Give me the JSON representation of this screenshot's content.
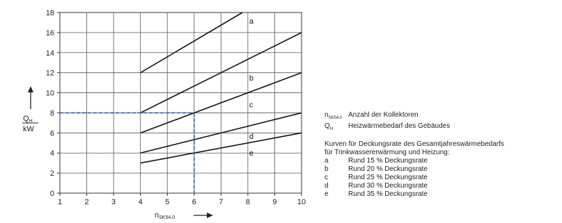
{
  "chart_data": {
    "type": "line",
    "x_ticks": [
      "1",
      "2",
      "3",
      "4",
      "5",
      "6",
      "7",
      "8",
      "9",
      "10"
    ],
    "y_ticks": [
      "0",
      "2",
      "4",
      "6",
      "8",
      "10",
      "12",
      "14",
      "16",
      "18"
    ],
    "xlim": [
      1,
      10
    ],
    "ylim": [
      0,
      18
    ],
    "grid": true,
    "xlabel": {
      "main": "n",
      "sub": "SK54.0"
    },
    "ylabel": {
      "num": "Q",
      "num_sub": "H",
      "den": "kW"
    },
    "series": [
      {
        "name": "a",
        "label_at": [
          8.05,
          16.9
        ],
        "points": [
          [
            4,
            12
          ],
          [
            7.8,
            18
          ]
        ]
      },
      {
        "name": "b",
        "label_at": [
          8.05,
          11.2
        ],
        "points": [
          [
            4,
            8
          ],
          [
            10,
            16
          ]
        ]
      },
      {
        "name": "c",
        "label_at": [
          8.05,
          8.55
        ],
        "points": [
          [
            4,
            6
          ],
          [
            10,
            12
          ]
        ]
      },
      {
        "name": "d",
        "label_at": [
          8.05,
          5.4
        ],
        "points": [
          [
            4,
            4
          ],
          [
            10,
            8
          ]
        ]
      },
      {
        "name": "e",
        "label_at": [
          8.05,
          3.75
        ],
        "points": [
          [
            4,
            3
          ],
          [
            10,
            6
          ]
        ]
      }
    ],
    "reading": {
      "x": 6,
      "y": 8,
      "color": "#3557a8"
    }
  },
  "legend": {
    "symbols": [
      {
        "sym": "n",
        "sub": "SK54.0",
        "text": "Anzahl der Kollektoren"
      },
      {
        "sym": "Q",
        "sub": "H",
        "text": "Heizwärmebedarf des Gebäudes"
      }
    ],
    "title_line1": "Kurven für Deckungsrate des Gesamtjahreswärmebedarfs",
    "title_line2": "für Trinkwassererwärmung und Heizung:",
    "curves": [
      {
        "key": "a",
        "text": "Rund 15 % Deckungsrate"
      },
      {
        "key": "b",
        "text": "Rund 20 % Deckungsrate"
      },
      {
        "key": "c",
        "text": "Rund 25 % Deckungsrate"
      },
      {
        "key": "d",
        "text": "Rund 30 % Deckungsrate"
      },
      {
        "key": "e",
        "text": "Rund 35 % Deckungsrate"
      }
    ]
  }
}
